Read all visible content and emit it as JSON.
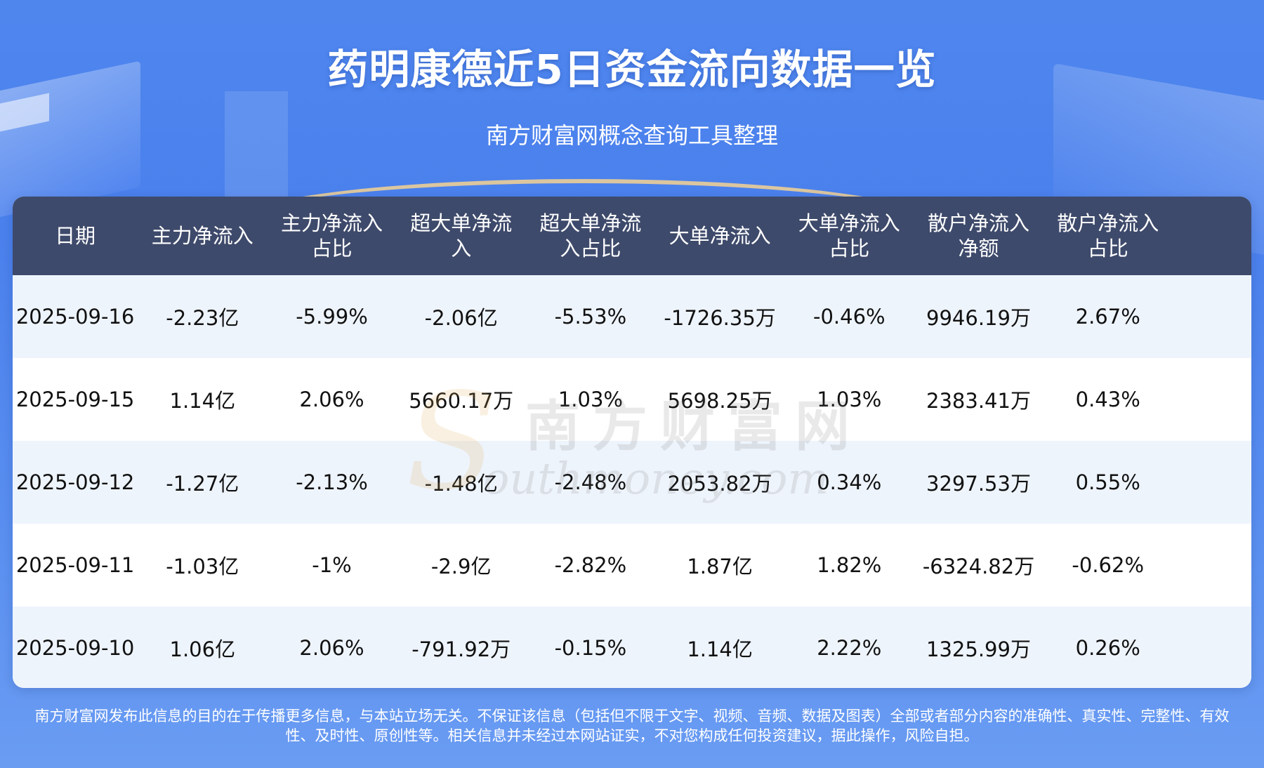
{
  "header": {
    "title": "药明康德近5日资金流向数据一览",
    "subtitle": "南方财富网概念查询工具整理"
  },
  "table": {
    "columns": [
      "日期",
      "主力净流入",
      "主力净流入\n占比",
      "超大单净流\n入",
      "超大单净流\n入占比",
      "大单净流入",
      "大单净流入\n占比",
      "散户净流入\n净额",
      "散户净流入\n占比"
    ],
    "rows": [
      [
        "2025-09-16",
        "-2.23亿",
        "-5.99%",
        "-2.06亿",
        "-5.53%",
        "-1726.35万",
        "-0.46%",
        "9946.19万",
        "2.67%"
      ],
      [
        "2025-09-15",
        "1.14亿",
        "2.06%",
        "5660.17万",
        "1.03%",
        "5698.25万",
        "1.03%",
        "2383.41万",
        "0.43%"
      ],
      [
        "2025-09-12",
        "-1.27亿",
        "-2.13%",
        "-1.48亿",
        "-2.48%",
        "2053.82万",
        "0.34%",
        "3297.53万",
        "0.55%"
      ],
      [
        "2025-09-11",
        "-1.03亿",
        "-1%",
        "-2.9亿",
        "-2.82%",
        "1.87亿",
        "1.82%",
        "-6324.82万",
        "-0.62%"
      ],
      [
        "2025-09-10",
        "1.06亿",
        "2.06%",
        "-791.92万",
        "-0.15%",
        "1.14亿",
        "2.22%",
        "1325.99万",
        "0.26%"
      ]
    ]
  },
  "watermark": {
    "brand_cn": "南方财富网",
    "brand_en": "outhmoney.com",
    "brand_s": "S"
  },
  "footer": {
    "disclaimer_line1": "南方财富网发布此信息的目的在于传播更多信息，与本站立场无关。不保证该信息（包括但不限于文字、视频、音频、数据及图表）全部或者部分内容的准确性、真实性、完整性、有效",
    "disclaimer_line2": "性、及时性、原创性等。相关信息并未经过本网站证实，不对您构成任何投资建议，据此操作，风险自担。"
  },
  "colors": {
    "header_row": "#3e4a6b",
    "odd_row": "#eef4fc",
    "background": "#4f86ee"
  }
}
